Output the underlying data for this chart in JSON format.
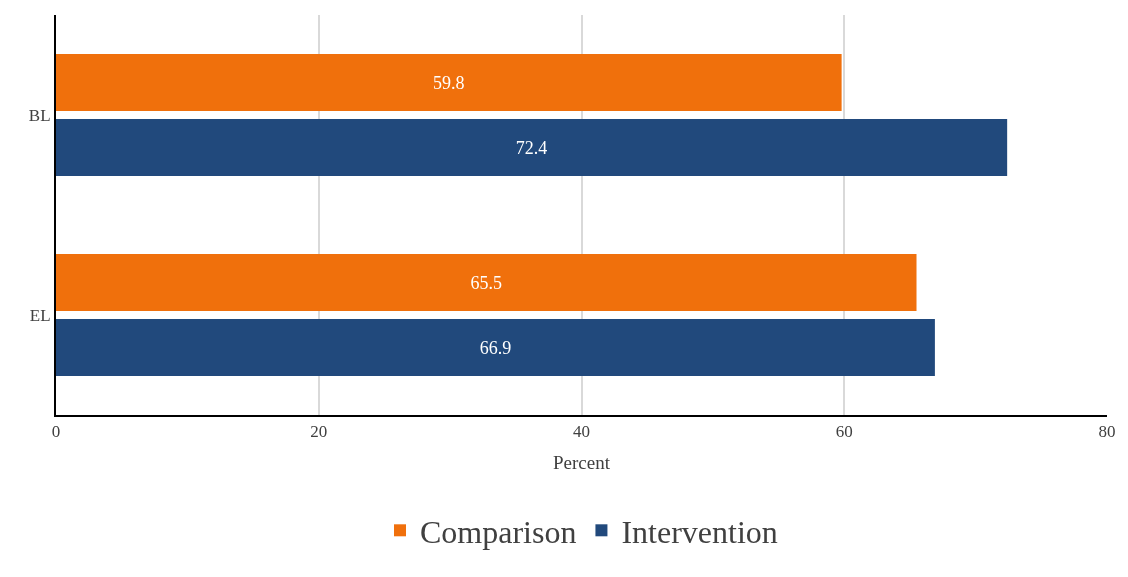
{
  "chart_data": {
    "type": "bar",
    "orientation": "horizontal",
    "categories": [
      "BL",
      "EL"
    ],
    "series": [
      {
        "name": "Comparison",
        "color": "#f0700c",
        "values": [
          59.8,
          65.5
        ]
      },
      {
        "name": "Intervention",
        "color": "#21497c",
        "values": [
          72.4,
          66.9
        ]
      }
    ],
    "xlabel": "Percent",
    "xlim": [
      0,
      80
    ],
    "xticks": [
      0,
      20,
      40,
      60,
      80
    ],
    "grid": "x",
    "legend": "bottom",
    "data_labels": true
  }
}
